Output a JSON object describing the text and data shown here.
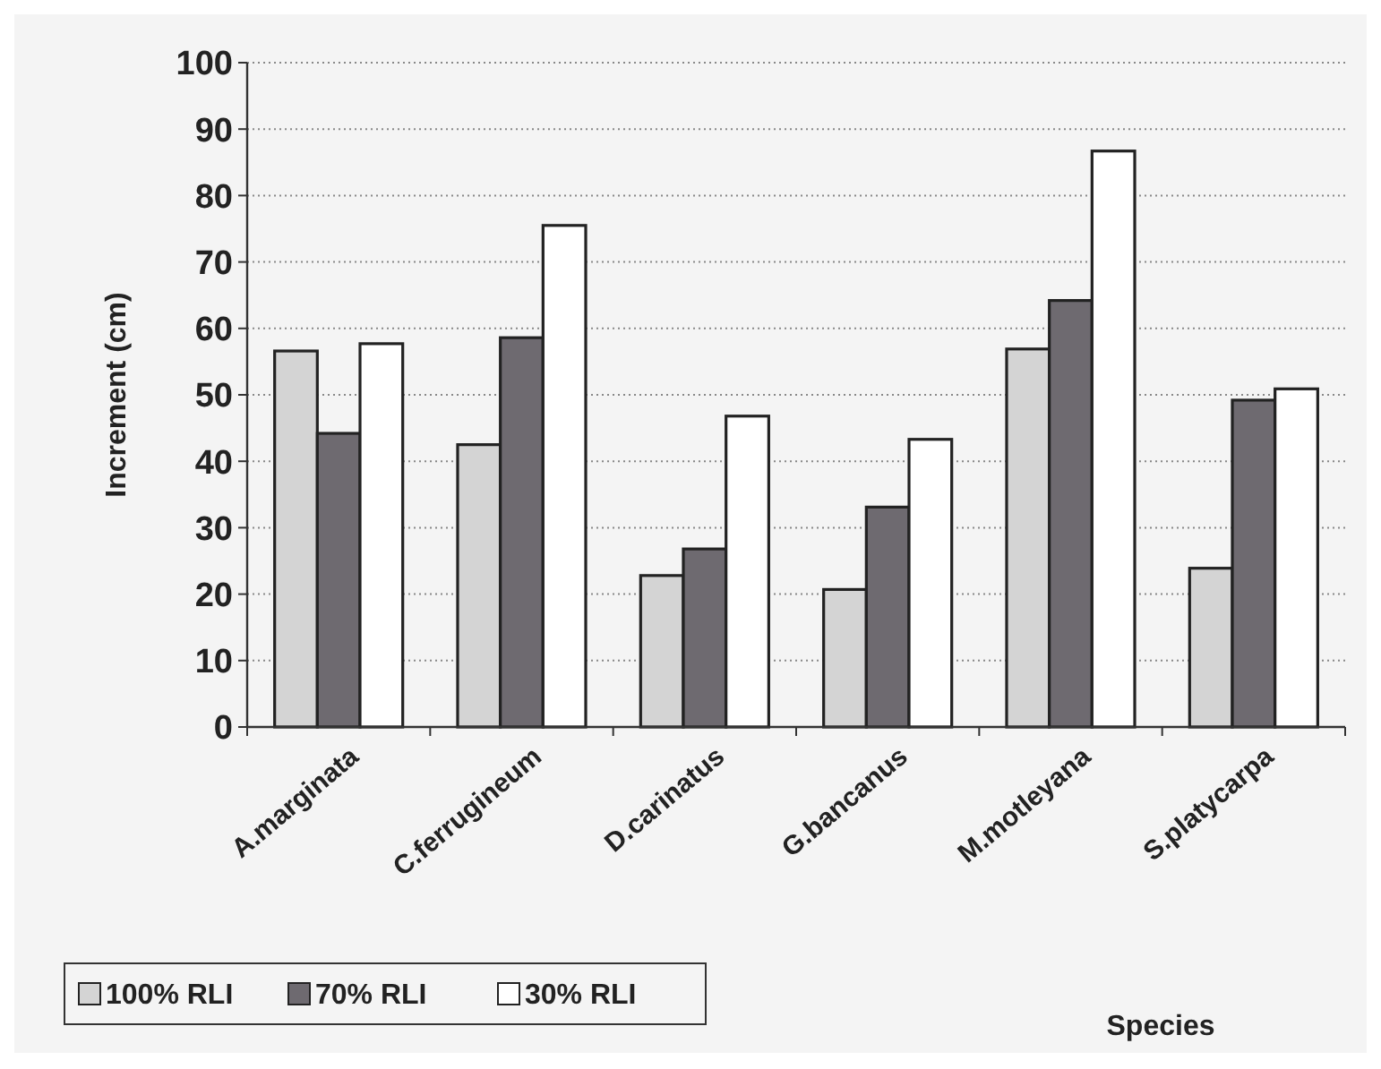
{
  "chart_data": {
    "type": "bar",
    "xlabel": "Species",
    "ylabel": "Increment (cm)",
    "categories": [
      "A.marginata",
      "C.ferrugineum",
      "D.carinatus",
      "G.bancanus",
      "M.motleyana",
      "S.platycarpa"
    ],
    "series": [
      {
        "name": "100% RLI",
        "color": "#d4d4d4",
        "values": [
          56.6,
          42.5,
          22.8,
          20.7,
          56.9,
          23.9
        ]
      },
      {
        "name": "70% RLI",
        "color": "#6e6a70",
        "values": [
          44.2,
          58.6,
          26.8,
          33.1,
          64.2,
          49.2
        ]
      },
      {
        "name": "30% RLI",
        "color": "#ffffff",
        "values": [
          57.7,
          75.5,
          46.8,
          43.3,
          86.7,
          50.9
        ]
      }
    ],
    "ylim": [
      0,
      100
    ],
    "yticks": [
      0,
      10,
      20,
      30,
      40,
      50,
      60,
      70,
      80,
      90,
      100
    ],
    "grid": "y",
    "legend": "bottom left"
  }
}
